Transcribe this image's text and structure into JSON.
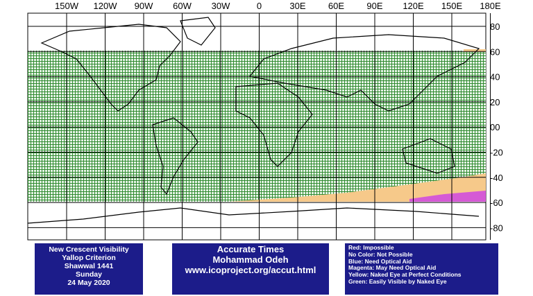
{
  "map": {
    "lon_labels": [
      "150W",
      "120W",
      "90W",
      "60W",
      "30W",
      "0",
      "30E",
      "60E",
      "90E",
      "120E",
      "150E",
      "180E"
    ],
    "lat_labels": [
      "80",
      "60",
      "40",
      "20",
      "00",
      "-20",
      "-40",
      "-60",
      "-80"
    ]
  },
  "info_box": {
    "lines": [
      "New Crescent Visibility",
      "Yallop Criterion",
      "Shawwal 1441",
      "Sunday",
      "24 May 2020"
    ]
  },
  "credit_box": {
    "lines": [
      "Accurate Times",
      "Mohammad Odeh",
      "www.icoproject.org/accut.html"
    ]
  },
  "legend_box": {
    "lines": [
      "Red: Impossible",
      "No Color: Not Possible",
      "Blue: Need Optical Aid",
      "Magenta: May Need Optical Aid",
      "Yellow: Naked Eye at Perfect Conditions",
      "Green: Easily Visible by Naked Eye"
    ]
  }
}
